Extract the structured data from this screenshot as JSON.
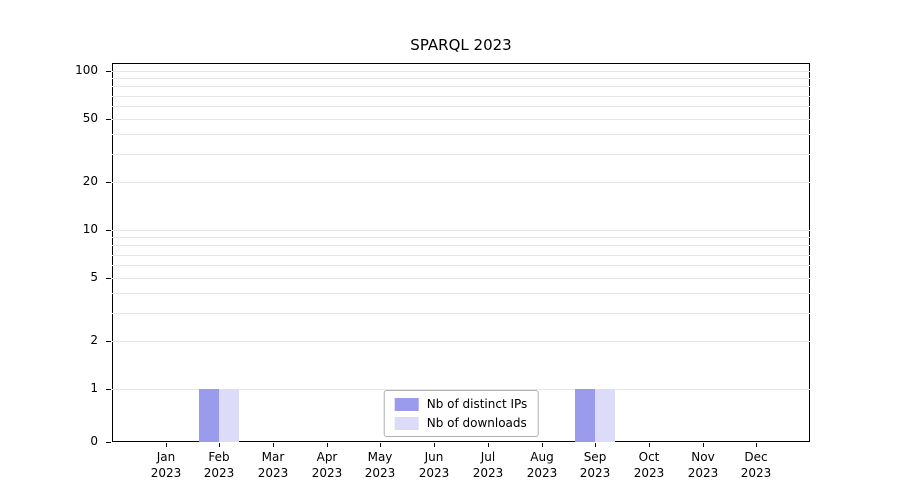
{
  "chart_data": {
    "type": "bar",
    "title": "SPARQL 2023",
    "x_tick_top_labels": [
      "Jan",
      "Feb",
      "Mar",
      "Apr",
      "May",
      "Jun",
      "Jul",
      "Aug",
      "Sep",
      "Oct",
      "Nov",
      "Dec"
    ],
    "x_tick_bottom_label": "2023",
    "categories": [
      "Jan 2023",
      "Feb 2023",
      "Mar 2023",
      "Apr 2023",
      "May 2023",
      "Jun 2023",
      "Jul 2023",
      "Aug 2023",
      "Sep 2023",
      "Oct 2023",
      "Nov 2023",
      "Dec 2023"
    ],
    "series": [
      {
        "name": "Nb of distinct IPs",
        "color": "#9b9bee",
        "values": [
          0,
          1,
          0,
          0,
          0,
          0,
          0,
          0,
          1,
          0,
          0,
          0
        ]
      },
      {
        "name": "Nb of downloads",
        "color": "#dcdcf9",
        "values": [
          0,
          1,
          0,
          0,
          0,
          0,
          0,
          0,
          1,
          0,
          0,
          0
        ]
      }
    ],
    "yticks": [
      0,
      1,
      2,
      5,
      10,
      20,
      50,
      100
    ],
    "minor_gridline_values": [
      1,
      2,
      3,
      4,
      5,
      6,
      7,
      8,
      9,
      10,
      20,
      30,
      40,
      50,
      60,
      70,
      80,
      90,
      100
    ],
    "yscale": "symlog",
    "ylim": [
      0,
      112
    ],
    "grid": "horizontal",
    "grid_color": "#e7e7e7",
    "axis_color": "#000000",
    "legend_position": "inside-bottom-center"
  }
}
